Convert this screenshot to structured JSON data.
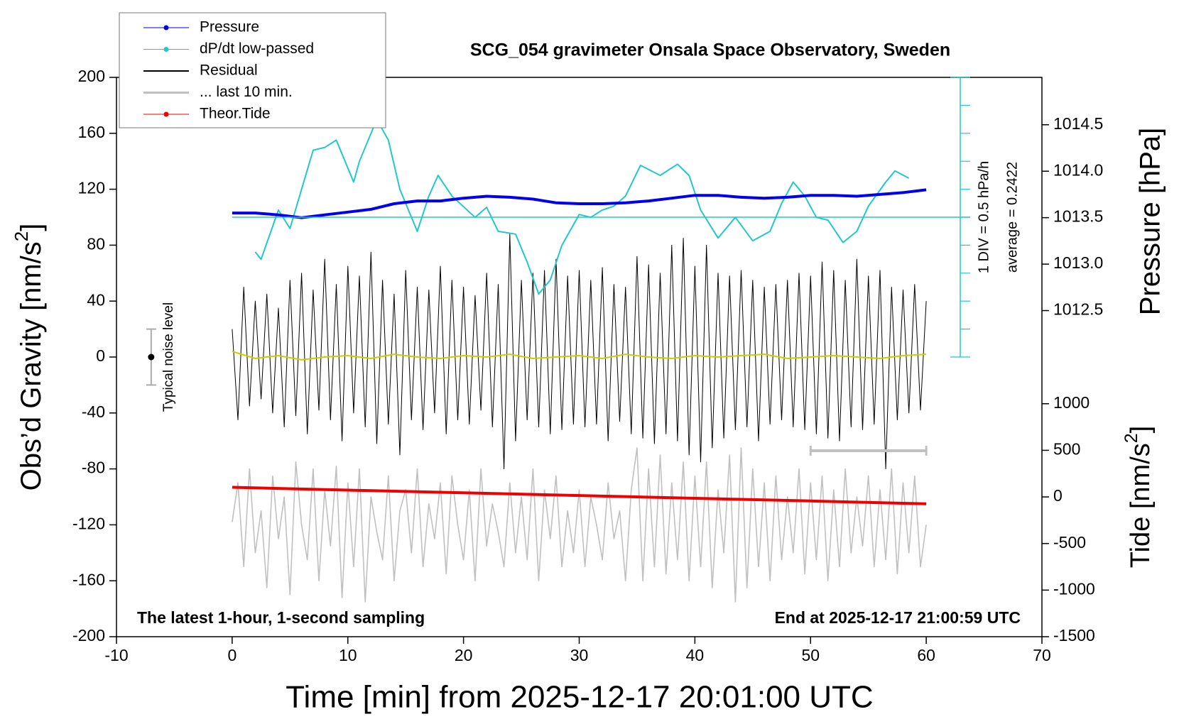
{
  "chart_data": {
    "type": "line",
    "title": "SCG_054 gravimeter Onsala Space Observatory, Sweden",
    "xlabel": "Time [min] from 2025-12-17 20:01:00 UTC",
    "ylabel": [
      "Obs’d Gravity [nm/s",
      "2",
      "]"
    ],
    "y2label": "Pressure [hPa]",
    "y3label": [
      "Tide [nm/s",
      "2",
      "]"
    ],
    "xlim": [
      -10,
      70
    ],
    "xticks": [
      -10,
      0,
      10,
      20,
      30,
      40,
      50,
      60,
      70
    ],
    "ylim": [
      -200,
      200
    ],
    "yticks": [
      -200,
      -160,
      -120,
      -80,
      -40,
      0,
      40,
      80,
      120,
      160,
      200
    ],
    "y2lim": [
      1008.99,
      1015.01
    ],
    "y2ticks": [
      1012.5,
      1013.0,
      1013.5,
      1014.0,
      1014.5
    ],
    "y3lim": [
      -1500,
      4502
    ],
    "y3ticks": [
      -1500,
      -1000,
      -500,
      0,
      500,
      1000
    ],
    "dpdt_lim": [
      -2.2578,
      2.7422
    ],
    "dpdt_ticks": [
      -2.2578,
      -1.7578,
      -1.2578,
      -0.7578,
      -0.2578,
      0.2422,
      0.7422,
      1.2422,
      1.7422,
      2.2422,
      2.7422
    ],
    "dpdt_average": 0.2422,
    "legend": "upper left",
    "x": [
      0,
      0.5,
      1,
      1.5,
      2,
      2.5,
      3,
      3.5,
      4,
      4.5,
      5,
      5.5,
      6,
      6.5,
      7,
      7.5,
      8,
      8.5,
      9,
      9.5,
      10,
      10.5,
      11,
      11.5,
      12,
      12.5,
      13,
      13.5,
      14,
      14.5,
      15,
      15.5,
      16,
      16.5,
      17,
      17.5,
      18,
      18.5,
      19,
      19.5,
      20,
      20.5,
      21,
      21.5,
      22,
      22.5,
      23,
      23.5,
      24,
      24.5,
      25,
      25.5,
      26,
      26.5,
      27,
      27.5,
      28,
      28.5,
      29,
      29.5,
      30,
      30.5,
      31,
      31.5,
      32,
      32.5,
      33,
      33.5,
      34,
      34.5,
      35,
      35.5,
      36,
      36.5,
      37,
      37.5,
      38,
      38.5,
      39,
      39.5,
      40,
      40.5,
      41,
      41.5,
      42,
      42.5,
      43,
      43.5,
      44,
      44.5,
      45,
      45.5,
      46,
      46.5,
      47,
      47.5,
      48,
      48.5,
      49,
      49.5,
      50,
      50.5,
      51,
      51.5,
      52,
      52.5,
      53,
      53.5,
      54,
      54.5,
      55,
      55.5,
      56,
      56.5,
      57,
      57.5,
      58,
      58.5,
      59,
      59.5,
      60
    ],
    "series": [
      {
        "name": "Pressure",
        "color": "#0000ee",
        "axis": "y2",
        "linewidth": 4,
        "marker": true,
        "x": [
          0,
          2,
          4,
          6,
          8,
          10,
          12,
          14,
          16,
          18,
          20,
          22,
          24,
          26,
          28,
          30,
          32,
          34,
          36,
          38,
          40,
          42,
          44,
          46,
          48,
          50,
          52,
          54,
          56,
          58,
          60
        ],
        "values": [
          1013.55,
          1013.55,
          1013.53,
          1013.5,
          1013.53,
          1013.56,
          1013.59,
          1013.65,
          1013.68,
          1013.68,
          1013.71,
          1013.73,
          1013.72,
          1013.7,
          1013.66,
          1013.65,
          1013.65,
          1013.66,
          1013.68,
          1013.71,
          1013.74,
          1013.74,
          1013.72,
          1013.71,
          1013.72,
          1013.74,
          1013.74,
          1013.73,
          1013.75,
          1013.77,
          1013.8
        ]
      },
      {
        "name": "dP/dt low-passed",
        "color": "#22c8c8",
        "axis": "dpdt",
        "linewidth": 2,
        "marker": true,
        "x": [
          2,
          2.5,
          4,
          5,
          7,
          8,
          9,
          10.5,
          11,
          12.5,
          13.5,
          14.5,
          16,
          17,
          17.8,
          19,
          21,
          22,
          23,
          24.5,
          25.5,
          26.5,
          27.5,
          28.5,
          30,
          31,
          32,
          33,
          34,
          35.3,
          37,
          38.5,
          39.5,
          40.5,
          42,
          43.5,
          45,
          46.5,
          47.5,
          48.5,
          49.5,
          50.5,
          51.5,
          52.8,
          54,
          55,
          56.5,
          57.3,
          58.5
        ],
        "values": [
          -0.38,
          -0.51,
          0.37,
          0.04,
          1.44,
          1.49,
          1.62,
          0.87,
          1.24,
          1.99,
          1.62,
          0.74,
          -0.01,
          0.62,
          0.99,
          0.62,
          0.24,
          0.42,
          -0.01,
          -0.06,
          -0.56,
          -1.13,
          -0.88,
          -0.26,
          0.29,
          0.24,
          0.37,
          0.44,
          0.62,
          1.17,
          0.99,
          1.19,
          0.99,
          0.37,
          -0.13,
          0.24,
          -0.18,
          -0.01,
          0.49,
          0.87,
          0.62,
          0.24,
          0.19,
          -0.21,
          -0.01,
          0.44,
          0.87,
          1.07,
          0.94
        ]
      },
      {
        "name": "Residual",
        "color": "#000000",
        "axis": "y",
        "linewidth": 1,
        "marker": false,
        "values": [
          20,
          -45,
          50,
          -35,
          40,
          -30,
          45,
          -40,
          35,
          -50,
          55,
          -42,
          60,
          -55,
          48,
          -38,
          70,
          -45,
          52,
          -60,
          65,
          -40,
          58,
          -50,
          75,
          -62,
          55,
          -48,
          45,
          -70,
          62,
          -45,
          50,
          -52,
          48,
          -40,
          65,
          -55,
          55,
          -45,
          50,
          -48,
          44,
          -38,
          60,
          -50,
          52,
          -80,
          88,
          -60,
          55,
          -45,
          60,
          -50,
          62,
          -55,
          70,
          -52,
          58,
          -48,
          62,
          -50,
          55,
          -48,
          64,
          -60,
          52,
          -46,
          50,
          -55,
          72,
          -58,
          66,
          -62,
          60,
          -55,
          80,
          -60,
          85,
          -70,
          65,
          -75,
          80,
          -65,
          60,
          -58,
          58,
          -52,
          62,
          -50,
          55,
          -60,
          50,
          -48,
          52,
          -45,
          55,
          -50,
          60,
          -52,
          58,
          -55,
          68,
          -58,
          62,
          -60,
          55,
          -50,
          70,
          -52,
          58,
          -48,
          62,
          -80,
          50,
          -45,
          48,
          -40,
          52,
          -38,
          40
        ]
      },
      {
        "name": "... last 10 min.",
        "color": "#c0c0c0",
        "axis": "y",
        "linewidth": 1.6,
        "legend_width": 3,
        "marker": false,
        "values": [
          -118,
          -90,
          -150,
          -80,
          -140,
          -110,
          -165,
          -85,
          -130,
          -100,
          -170,
          -75,
          -120,
          -145,
          -80,
          -160,
          -95,
          -135,
          -78,
          -172,
          -90,
          -150,
          -80,
          -175,
          -100,
          -125,
          -145,
          -85,
          -160,
          -110,
          -95,
          -140,
          -80,
          -150,
          -105,
          -130,
          -90,
          -155,
          -85,
          -120,
          -145,
          -95,
          -160,
          -80,
          -135,
          -105,
          -125,
          -150,
          -90,
          -140,
          -100,
          -145,
          -80,
          -160,
          -95,
          -130,
          -85,
          -150,
          -110,
          -140,
          -95,
          -150,
          -100,
          -120,
          -145,
          -90,
          -130,
          -110,
          -160,
          -95,
          -65,
          -160,
          -80,
          -150,
          -70,
          -155,
          -90,
          -145,
          -75,
          -160,
          -85,
          -150,
          -75,
          -165,
          -95,
          -140,
          -70,
          -175,
          -65,
          -165,
          -80,
          -150,
          -90,
          -160,
          -85,
          -145,
          -100,
          -140,
          -80,
          -155,
          -90,
          -145,
          -85,
          -160,
          -95,
          -150,
          -80,
          -140,
          -100,
          -135,
          -85,
          -150,
          -95,
          -145,
          -80,
          -155,
          -90,
          -140,
          -85,
          -150,
          -120
        ]
      },
      {
        "name": "Theor.Tide",
        "color": "#ee0000",
        "axis": "y3",
        "linewidth": 4,
        "marker": true,
        "x": [
          0,
          10,
          20,
          30,
          40,
          50,
          60
        ],
        "values": [
          103,
          73,
          44,
          15,
          -15,
          -44,
          -74
        ]
      },
      {
        "color": "#cccc00",
        "axis": "y",
        "linewidth": 2,
        "marker": false,
        "x": [
          0,
          2,
          4,
          6,
          8,
          10,
          12,
          14,
          16,
          18,
          20,
          22,
          24,
          26,
          28,
          30,
          32,
          34,
          36,
          38,
          40,
          42,
          44,
          46,
          48,
          50,
          52,
          54,
          56,
          58,
          60
        ],
        "values": [
          4,
          -1,
          1,
          -2,
          0,
          1,
          -1,
          2,
          0,
          -1,
          1,
          0,
          2,
          -1,
          0,
          1,
          -1,
          2,
          0,
          -1,
          1,
          0,
          1,
          2,
          -1,
          0,
          1,
          0,
          -1,
          1,
          2
        ]
      }
    ],
    "noise_level": {
      "x": -7,
      "value": 0,
      "error": 20
    },
    "last10_span": {
      "x": [
        50,
        60
      ],
      "y": -67
    },
    "annotations": {
      "div": "1 DIV = 0.5 hPa/h",
      "average": "average = 0.2422",
      "noise": "Typical noise level",
      "latest": "The latest 1-hour, 1-second sampling",
      "end": "End at 2025-12-17 21:00:59 UTC"
    }
  }
}
